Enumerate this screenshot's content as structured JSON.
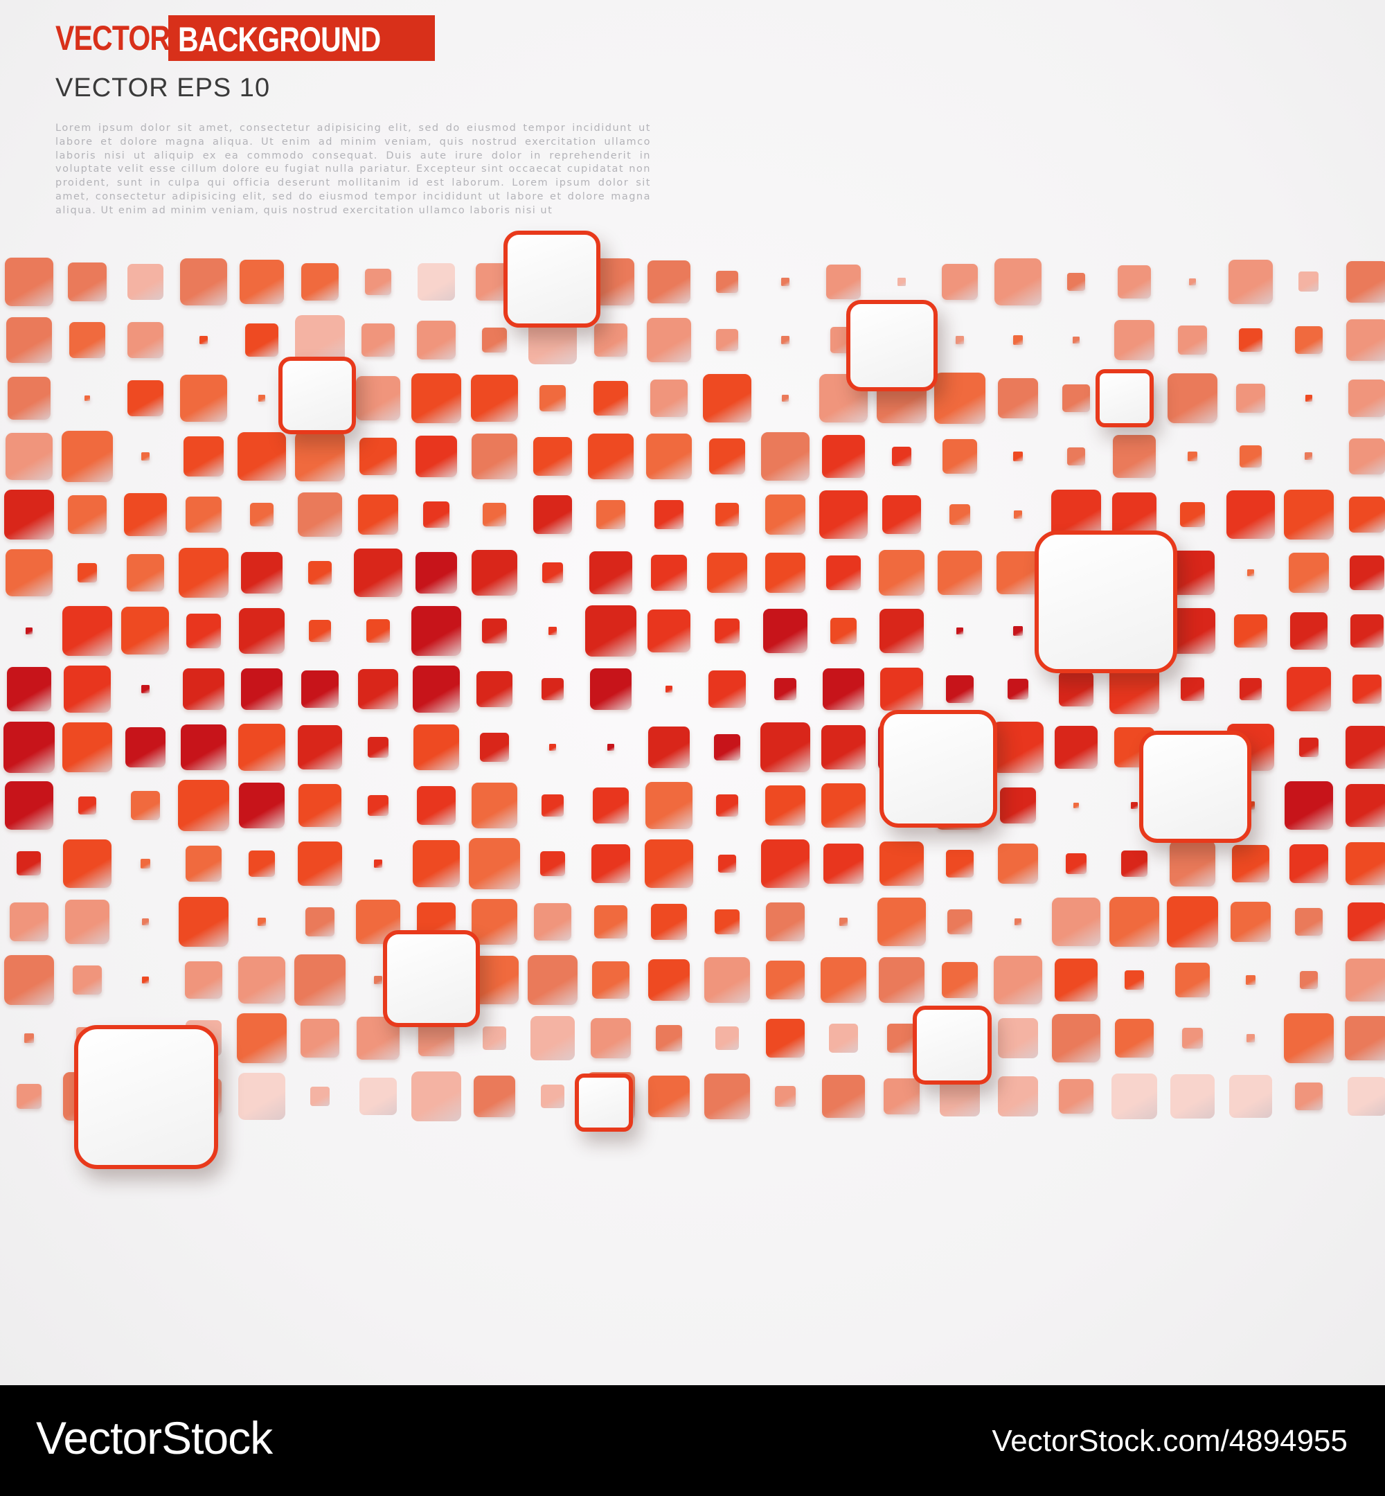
{
  "header": {
    "title_word_1": "VECTOR",
    "title_word_2": "BACKGROUND",
    "subtitle": "VECTOR  EPS 10",
    "body_text": "Lorem ipsum dolor sit amet, consectetur adipisicing elit, sed do eiusmod tempor incididunt ut labore et dolore magna aliqua. Ut enim ad minim veniam, quis nostrud exercitation ullamco laboris nisi ut aliquip ex ea commodo consequat. Duis aute irure dolor in reprehenderit in voluptate velit esse cillum dolore eu fugiat nulla pariatur. Excepteur sint occaecat cupidatat non proident, sunt in culpa qui officia deserunt mollitanim id est laborum. Lorem ipsum dolor sit amet, consectetur adipisicing elit, sed do eiusmod tempor incididunt ut labore et dolore magna aliqua. Ut enim ad minim veniam, quis nostrud exercitation ullamco laboris nisi ut"
  },
  "colors": {
    "accent": "#d8301a",
    "card_border": "#e8391b",
    "tile_palette": [
      "#c7141a",
      "#d9261a",
      "#e8361e",
      "#ee4a22",
      "#f06a3e",
      "#ea7a5a",
      "#f0957c",
      "#f4b3a3",
      "#f8d4cc"
    ]
  },
  "footer": {
    "brand": "VectorStock",
    "url": "VectorStock.com/4894955"
  }
}
